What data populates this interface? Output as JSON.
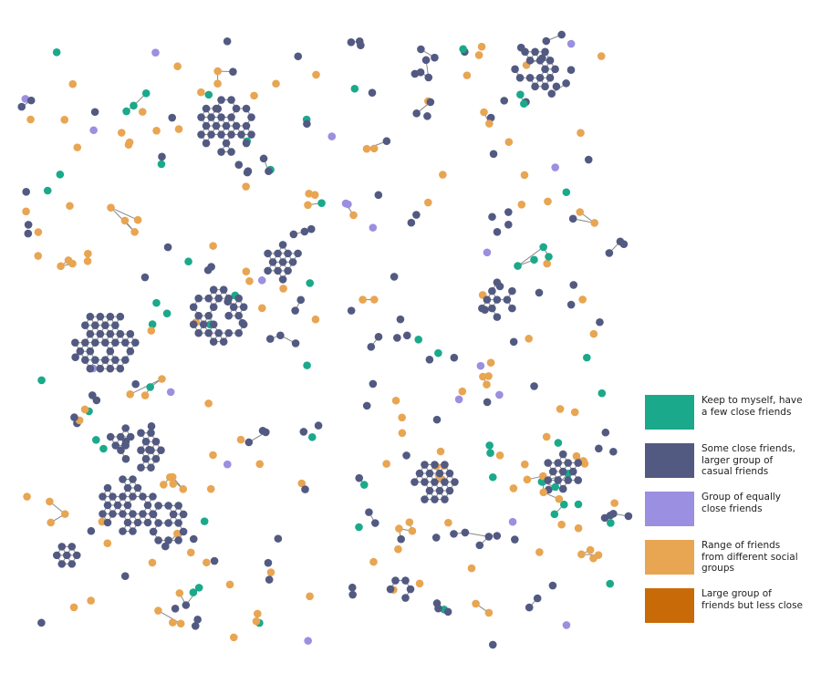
{
  "legend": {
    "items": [
      {
        "label": "Keep to myself, have a few close friends",
        "color": "#1aa98b"
      },
      {
        "label": "Some close friends, larger group of casual friends",
        "color": "#525a82"
      },
      {
        "label": "Group of equally close friends",
        "color": "#9a8fe0"
      },
      {
        "label": "Range of friends from different social groups",
        "color": "#e8a552"
      },
      {
        "label": "Large group of friends but less close",
        "color": "#c96a08"
      }
    ]
  }
}
